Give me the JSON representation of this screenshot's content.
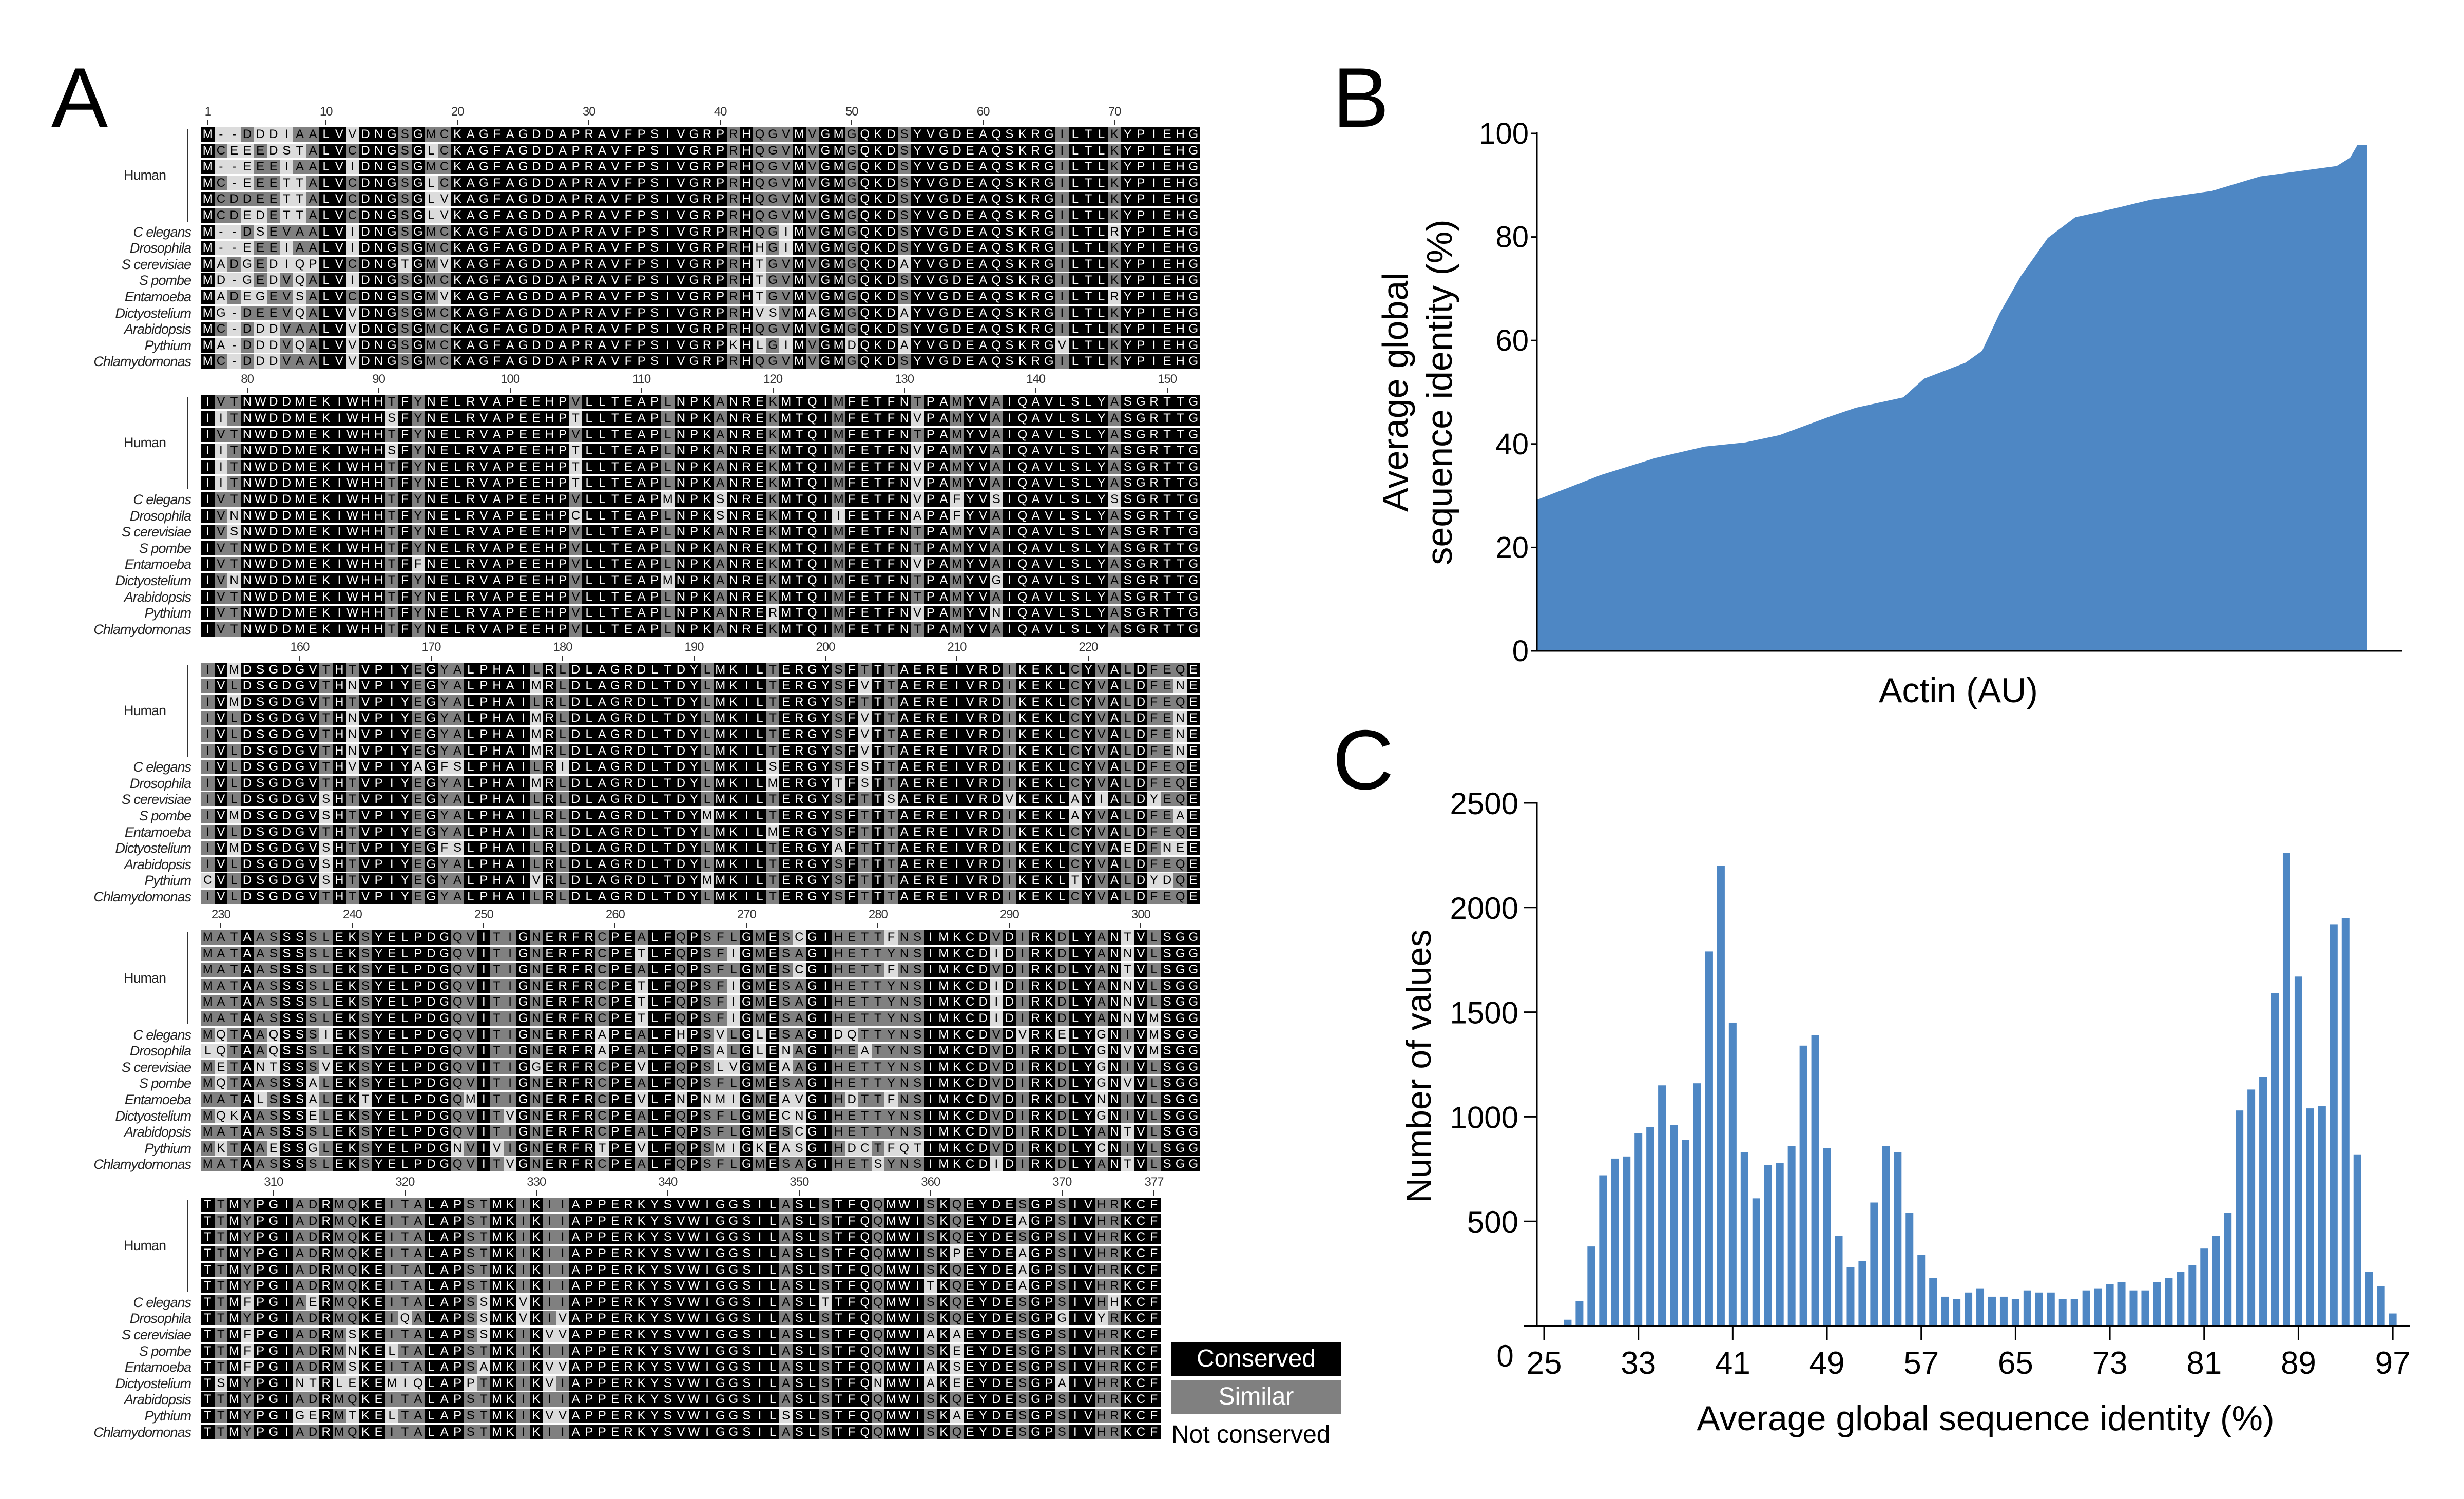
{
  "panel_labels": {
    "a": "A",
    "b": "B",
    "c": "C"
  },
  "alignment": {
    "group_label": "Human",
    "species": [
      "C elegans",
      "Drosophila",
      "S cerevisiae",
      "S pombe",
      "Entamoeba",
      "Dictyostelium",
      "Arabidopsis",
      "Pythium",
      "Chlamydomonas"
    ],
    "blocks": [
      {
        "ticks": [
          1,
          10,
          20,
          30,
          40,
          50,
          60,
          70
        ],
        "rows": [
          "M--DDDIAALVVDNGSGMCKAGFAGDDAPRAVFPSIVGRPRHQGVMVGMGQKDSYVGDEAQSKRGILTLKYPIEHG",
          "MCEEEDSTALVCDNGSGLCKAGFAGDDAPRAVFPSIVGRPRHQGVMVGMGQKDSYVGDEAQSKRGILTLKYPIEHG",
          "M--EEEIAALVIDNGSGMCKAGFAGDDAPRAVFPSIVGRPRHQGVMVGMGQKDSYVGDEAQSKRGILTLKYPIEHG",
          "MC-EEETTALVCDNGSGLCKAGFAGDDAPRAVFPSIVGRPRHQGVMVGMGQKDSYVGDEAQSKRGILTLKYPIEHG",
          "MCDDEETTALVCDNGSGLVKAGFAGDDAPRAVFPSIVGRPRHQGVMVGMGQKDSYVGDEAQSKRGILTLKYPIEHG",
          "MCDEDETTALVCDNGSGLVKAGFAGDDAPRAVFPSIVGRPRHQGVMVGMGQKDSYVGDEAQSKRGILTLKYPIEHG",
          "M--DSEVAALVIDNGSGMCKAGFAGDDAPRAVFPSIVGRPRHQGIMVGMGQKDSYVGDEAQSKRGILTLRYPIEHG",
          "M--EEEIAALVIDNGSGMCKAGFAGDDAPRAVFPSIVGRPRHHGIMVGMGQKDSYVGDEAQSKRGILTLKYPIEHG",
          "MADGEDIQPLVCDNGTGMVKAGFAGDDAPRAVFPSIVGRPRHTGVMVGMGQKDAYVGDEAQSKRGILTLKYPIEHG",
          "MD-GEDVQALVIDNGSGMCKAGFAGDDAPRAVFPSIVGRPRHTGVMVGMGQKDSYVGDEAQSKRGILTLKYPIEHG",
          "MADEGEVSALVCDNGSGMVKAGFAGDDAPRAVFPSIVGRPRHTGVMVGMGQKDSYVGDEAQSKRGILTLRYPIEHG",
          "MG-DEEVQALVVDNGSGMCKAGFAGDDAPRAVFPSIVGRPRHVSVMAGMGQKDAYVGDEAQSKRGILTLKYPIEHG",
          "MC-DDDVAALVVDNGSGMCKAGFAGDDAPRAVFPSIVGRPRHQGVMVGMGQKDSYVGDEAQSKRGILTLKYPIEHG",
          "MA-DDDVQALVVDNGSGMCKAGFAGDDAPRAVFPSIVGRPKHLGIMVGMDQKDAYVGDEAQSKRGVLTLKYPIEHG",
          "MC-DDDVAALVVDNGSGMCKAGFAGDDAPRAVFPSIVGRPRHQGVMVGMGQKDSYVGDEAQSKRGILTLKYPIEHG"
        ]
      },
      {
        "ticks": [
          80,
          90,
          100,
          110,
          120,
          130,
          140,
          150
        ],
        "rows": [
          "IVTNWDDMEKIWHHTFYNELRVAPEEHPVLLTEAPLNPKANREKMTQIMFETFNTPAMYVAIQAVLSLYASGRTTG",
          "IITNWDDMEKIWHHSFYNELRVAPEEHPTLLTEAPLNPKANREKMTQIMFETFNVPAMYVAIQAVLSLYASGRTTG",
          "IVTNWDDMEKIWHHTFYNELRVAPEEHPVLLTEAPLNPKANREKMTQIMFETFNTPAMYVAIQAVLSLYASGRTTG",
          "IITNWDDMEKIWHHSFYNELRVAPEEHPTLLTEAPLNPKANREKMTQIMFETFNVPAMYVAIQAVLSLYASGRTTG",
          "IITNWDDMEKIWHHTFYNELRVAPEEHPTLLTEAPLNPKANREKMTQIMFETFNVPAMYVAIQAVLSLYASGRTTG",
          "IITNWDDMEKIWHHTFYNELRVAPEEHPTLLTEAPLNPKANREKMTQIMFETFNVPAMYVAIQAVLSLYASGRTTG",
          "IVTNWDDMEKIWHHTFYNELRVAPEEHPVLLTEAPMNPKSNREKMTQIMFETFNVPAFYVSIQAVLSLYSSGRTTG",
          "IVNNWDDMEKIWHHTFYNELRVAPEEHPCLLTEAPLNPKSNREKMTQIIFETFNAPAFYVAIQAVLSLYASGRTTG",
          "IVSNWDDMEKIWHHTFYNELRVAPEEHPVLLTEAPLNPKANREKMTQIMFETFNTPAMYVAIQAVLSLYASGRTTG",
          "IVTNWDDMEKIWHHTFYNELRVAPEEHPVLLTEAPLNPKANREKMTQIMFETFNTPAMYVAIQAVLSLYASGRTTG",
          "IVTNWDDMEKIWHHTFFNELRVAPEEHPVLLTEAPLNPKANREKMTQIMFETFNVPAMYVAIQAVLSLYASGRTTG",
          "IVNNWDDMEKIWHHTFYNELRVAPEEHPVLLTEAPMNPKANREKMTQIMFETFNTPAMYVGIQAVLSLYASGRTTG",
          "IVTNWDDMEKIWHHTFYNELRVAPEEHPVLLTEAPLNPKANREKMTQIMFETFNTPAMYVAIQAVLSLYASGRTTG",
          "IVTNWDDMEKIWHHTFYNELRVAPEEHPVLLTEAPLNPKANRERMTQIMFETFNVPAMYVNIQAVLSLYASGRTTG",
          "IVTNWDDMEKIWHHTFYNELRVAPEEHPVLLTEAPLNPKANREKMTQIMFETFNTPAMYVAIQAVLSLYASGRTTG"
        ]
      },
      {
        "ticks": [
          160,
          170,
          180,
          190,
          200,
          210,
          220
        ],
        "rows": [
          "IVMDSGDGVTHTVPIYEGYALPHAILRLDLAGRDLTDYLMKILTERGYSFTTTAEREIVRDIKEKLCYVALDFEQE",
          "IVLDSGDGVTHNVPIYEGYALPHAIMRLDLAGRDLTDYLMKILTERGYSFVTTAEREIVRDIKEKLCYVALDFENE",
          "IVMDSGDGVTHTVPIYEGYALPHAILRLDLAGRDLTDYLMKILTERGYSFTTTAEREIVRDIKEKLCYVALDFEQE",
          "IVLDSGDGVTHNVPIYEGYALPHAIMRLDLAGRDLTDYLMKILTERGYSFVTTAEREIVRDIKEKLCYVALDFENE",
          "IVLDSGDGVTHNVPIYEGYALPHAIMRLDLAGRDLTDYLMKILTERGYSFVTTAEREIVRDIKEKLCYVALDFENE",
          "IVLDSGDGVTHNVPIYEGYALPHAIMRLDLAGRDLTDYLMKILTERGYSFVTTAEREIVRDIKEKLCYVALDFENE",
          "IVLDSGDGVTHVVPIYAGFSLPHAILRIDLAGRDLTDYLMKILSERGYSFSTTAEREIVRDIKEKLCYVALDFEQE",
          "IVLDSGDGVTHTVPIYEGYALPHAIMRLDLAGRDLTDYLMKILMERGYTFSTTAEREIVRDIKEKLCYVALDFEQE",
          "IVLDSGDGVSHTVPIYEGYALPHAILRLDLAGRDLTDYLMKILTERGYSFTTSAEREIVRDVKEKLAYIALDYEQE",
          "IVMDSGDGVSHTVPIYEGYALPHAILRLDLAGRDLTDYMMKILTERGYSFTTTAEREIVRDIKEKLAYVALDFEAE",
          "IVLDSGDGVTHTVPIYEGYALPHAILRLDLAGRDLTDYLMKILMERGYSFTTTAEREIVRDIKEKLCYVALDFEQE",
          "IVMDSGDGVSHTVPIYEGFSLPHAILRLDLAGRDLTDYLMKILTERGYAFTTTAEREIVRDIKEKLCYVAEDFNEE",
          "IVLDSGDGVSHTVPIYEGYALPHAILRLDLAGRDLTDYLMKILTERGYSFTTTAEREIVRDIKEKLCYVALDFEQE",
          "CVLDSGDGVSHTVPIYEGYALPHAIVRLDLAGRDLTDYMMKILTERGYSFTTTAEREIVRDIKEKLTYVALDYDQE",
          "IVLDSGDGVTHTVPIYEGYALPHAILRLDLAGRDLTDYLMKILTERGYSFTTTAEREIVRDIKEKLCYVALDFEQE"
        ]
      },
      {
        "ticks": [
          230,
          240,
          250,
          260,
          270,
          280,
          290,
          300
        ],
        "rows": [
          "MATAASSSSLEKSYELPDGQVITIGNERFRCPEALFQPSFLGMESCGIHETTFNSIMKCDVDIRKDLYANTVLSGG",
          "MATAASSSSLEKSYELPDGQVITIGNERFRCPETLFQPSFIGMESAGIHETTYNSIMKCDIDIRKDLYANNVLSGG",
          "MATAASSSSLEKSYELPDGQVITIGNERFRCPEALFQPSFLGMESCGIHETTFNSIMKCDVDIRKDLYANTVLSGG",
          "MATAASSSSLEKSYELPDGQVITIGNERFRCPETLFQPSFIGMESAGIHETTYNSIMKCDIDIRKDLYANNVLSGG",
          "MATAASSSSLEKSYELPDGQVITIGNERFRCPETLFQPSFIGMESAGIHETTYNSIMKCDIDIRKDLYANNVLSGG",
          "MATAASSSSLEKSYELPDGQVITIGNERFRCPETLFQPSFIGMESAGIHETTYNSIMKCDIDIRKDLYANNVMSGG",
          "MQTAAQSSSIEKSYELPDGQVITIGNERFRAPEALFHPSVLGLESAGIDQTTYNSIMKCDVDVRKELYGNIVMSGG",
          "LQTAAQSSSLEKSYELPDGQVITIGNERFRAPEALFQPSALGLENAGIHEATYNSIMKCDVDIRKDLYGNVVMSGG",
          "METANTSSSVEKSYELPDGQVITIGGERFRCPEVLFQPSLVGMEAAGIHETTYNSIMKCDVDIRKDLYGNIVLSGG",
          "MQTAASSSALEKSYELPDGQVITIGNERFRCPEALFQPSFLGMESAGIHETTYNSIMKCDVDIRKDLYGNVVLSGG",
          "MATALSSSALEKTYELPDGQMITIGNERFRCPEVLFNPNMIGMEAVGIHDTTFNSIMKCDVDIRKDLYNNIVLSGG",
          "MQKAASSSELEKSYELPDGQVITVGNERFRCPEALFQPSFLGMECNGIHETTYNSIMKCDVDIRKDLYGNIVLSGG",
          "MATAASSSSLEKSYELPDGQVITIGNERFRCPEALFQPSFLGMESCGIHETTYNSIMKCDVDIRKDLYANTVLSGG",
          "MKTAAESSGLEKSYELPDGNVIVIGNERFRTPEVLFQPSMIGKEASGIHDCTFQTIMKCDVDIRKDLYCNIVLSGG",
          "MATAASSSSLEKSYELPDGQVITVGNERFRCPEALFQPSFLGMESAGIHETSYNSIMKCDIDIRKDLYANTVLSGG"
        ]
      },
      {
        "ticks": [
          310,
          320,
          330,
          340,
          350,
          360,
          370,
          377
        ],
        "rows": [
          "TTMYPGIADRMQKEITALAPSTMKIKIIAPPERKYSVWIGGSILASLSTFQQMWISKQEYDESGPSIVHRKCF",
          "TTMYPGIADRMQKEITALAPSTMKIKIIAPPERKYSVWIGGSILASLSTFQQMWISKQEYDEAGPSIVHRKCF",
          "TTMYPGIADRMQKEITALAPSTMKIKIIAPPERKYSVWIGGSILASLSTFQQMWISKQEYDESGPSIVHRKCF",
          "TTMYPGIADRMQKEITALAPSTMKIKIIAPPERKYSVWIGGSILASLSTFQQMWISKPEYDEAGPSIVHRKCF",
          "TTMYPGIADRMQKEITALAPSTMKIKIIAPPERKYSVWIGGSILASLSTFQQMWISKQEYDEAGPSIVHRKCF",
          "TTMYPGIADRMQKEITALAPSTMKIKIIAPPERKYSVWIGGSILASLSTFQQMWITKQEYDEAGPSIVHRKCF",
          "TTMFPGIAERMQKEITALAPSSMKVKIIAPPERKYSVWIGGSILASLTTFQQMWISKQEYDESGPSIVHHKCF",
          "TTMYPGIADRMQKEIQALAPSSMKVKIVAPPERKYSVWIGGSILASLSTFQQMWISKQEYDESGPGIVYRKCF",
          "TTMFPGIADRMSKEITALAPSSMKIKVVAPPERKYSVWIGGSILASLSTFQQMWIAKAEYDESGPSIVHRKCF",
          "TTMFPGIADRMNKELTALAPSTMKIKIIAPPERKYSVWIGGSILASLSTFQQMWISKEEYDESGPSIVHRKCF",
          "TTMFPGIADRMSKEITALAPSAMKIKVVAPPERKYSVWIGGSILASLSTFQQMWIAKSEYDESGPSIVHRKCF",
          "TSMYPGINTRLEKEMIQLAPPTMKIKVIAPPERKYSVWIGGSILASLSTFQNMWIAKEEYDESGPAIVHRKCF",
          "TTMYPGIADRMQKEITALAPSTMKIKIIAPPERKYSVWIGGSILASLSTFQQMWISKQEYDESGPSIVHRKCF",
          "TTMYPGIGERMTKELTALAPSTMKIKVVAPPERKYSVWIGGSILSSLSTFQQMWISKAEYDESGPSIVHRKCF",
          "TTMYPGIADRMQKEITALAPSTMKIKIIAPPERKYSVWIGGSILASLSTFQQMWISKQEYDESGPSIVHRKCF"
        ]
      }
    ],
    "legend": {
      "conserved": "Conserved",
      "similar": "Similar",
      "not_conserved": "Not conserved"
    },
    "colors": {
      "conserved": "#000000",
      "similar": "#808080",
      "not_conserved": "#dcdcdc"
    }
  },
  "chart_data": [
    {
      "panel": "B",
      "type": "area",
      "xlabel": "Actin (AU)",
      "ylabel": [
        "Average global",
        "sequence identity (%)"
      ],
      "ylim": [
        0,
        100
      ],
      "yticks": [
        0,
        20,
        40,
        60,
        80,
        100
      ],
      "xticks": [],
      "grid": false,
      "color": "#4e87c4",
      "x": [
        0,
        7.7,
        14.3,
        20.2,
        25.1,
        29.2,
        35.1,
        38.4,
        44.1,
        46.6,
        51.6,
        53.6,
        55.7,
        58.2,
        61.5,
        64.8,
        69.8,
        73.9,
        81.3,
        87.1,
        96.3,
        97.9,
        98.8,
        100
      ],
      "y": [
        29.2,
        34,
        37.3,
        39.5,
        40.3,
        41.7,
        45.2,
        47,
        49,
        52.6,
        55.7,
        58,
        65.2,
        72.3,
        79.8,
        83.8,
        85.6,
        87.2,
        88.9,
        91.7,
        93.7,
        95.3,
        97.8,
        97.8
      ]
    },
    {
      "panel": "C",
      "type": "bar",
      "xlabel": "Average global sequence identity (%)",
      "ylabel": "Number of values",
      "ylim": [
        0,
        2500
      ],
      "yticks": [
        0,
        500,
        1000,
        1500,
        2000,
        2500
      ],
      "xticks": [
        25,
        33,
        41,
        49,
        57,
        65,
        73,
        81,
        89,
        97
      ],
      "grid": false,
      "color": "#4e87c4",
      "x": [
        27,
        28,
        29,
        30,
        31,
        32,
        33,
        34,
        35,
        36,
        37,
        38,
        39,
        40,
        41,
        42,
        43,
        44,
        45,
        46,
        47,
        48,
        49,
        50,
        51,
        52,
        53,
        54,
        55,
        56,
        57,
        58,
        59,
        60,
        61,
        62,
        63,
        64,
        65,
        66,
        67,
        68,
        69,
        70,
        71,
        72,
        73,
        74,
        75,
        76,
        77,
        78,
        79,
        80,
        81,
        82,
        83,
        84,
        85,
        86,
        87,
        88,
        89,
        90,
        91,
        92,
        93,
        94,
        95,
        96,
        97,
        98
      ],
      "values": [
        30,
        120,
        380,
        720,
        800,
        810,
        920,
        950,
        1150,
        960,
        890,
        1160,
        1790,
        2200,
        1450,
        830,
        610,
        770,
        780,
        860,
        1340,
        1390,
        850,
        430,
        280,
        310,
        590,
        860,
        830,
        540,
        340,
        230,
        140,
        130,
        160,
        180,
        140,
        140,
        130,
        170,
        160,
        160,
        130,
        130,
        170,
        180,
        200,
        210,
        170,
        170,
        210,
        230,
        260,
        290,
        370,
        430,
        540,
        1030,
        1130,
        1190,
        1590,
        2260,
        1670,
        1040,
        1050,
        1920,
        1950,
        820,
        260,
        190,
        60,
        5
      ]
    }
  ]
}
